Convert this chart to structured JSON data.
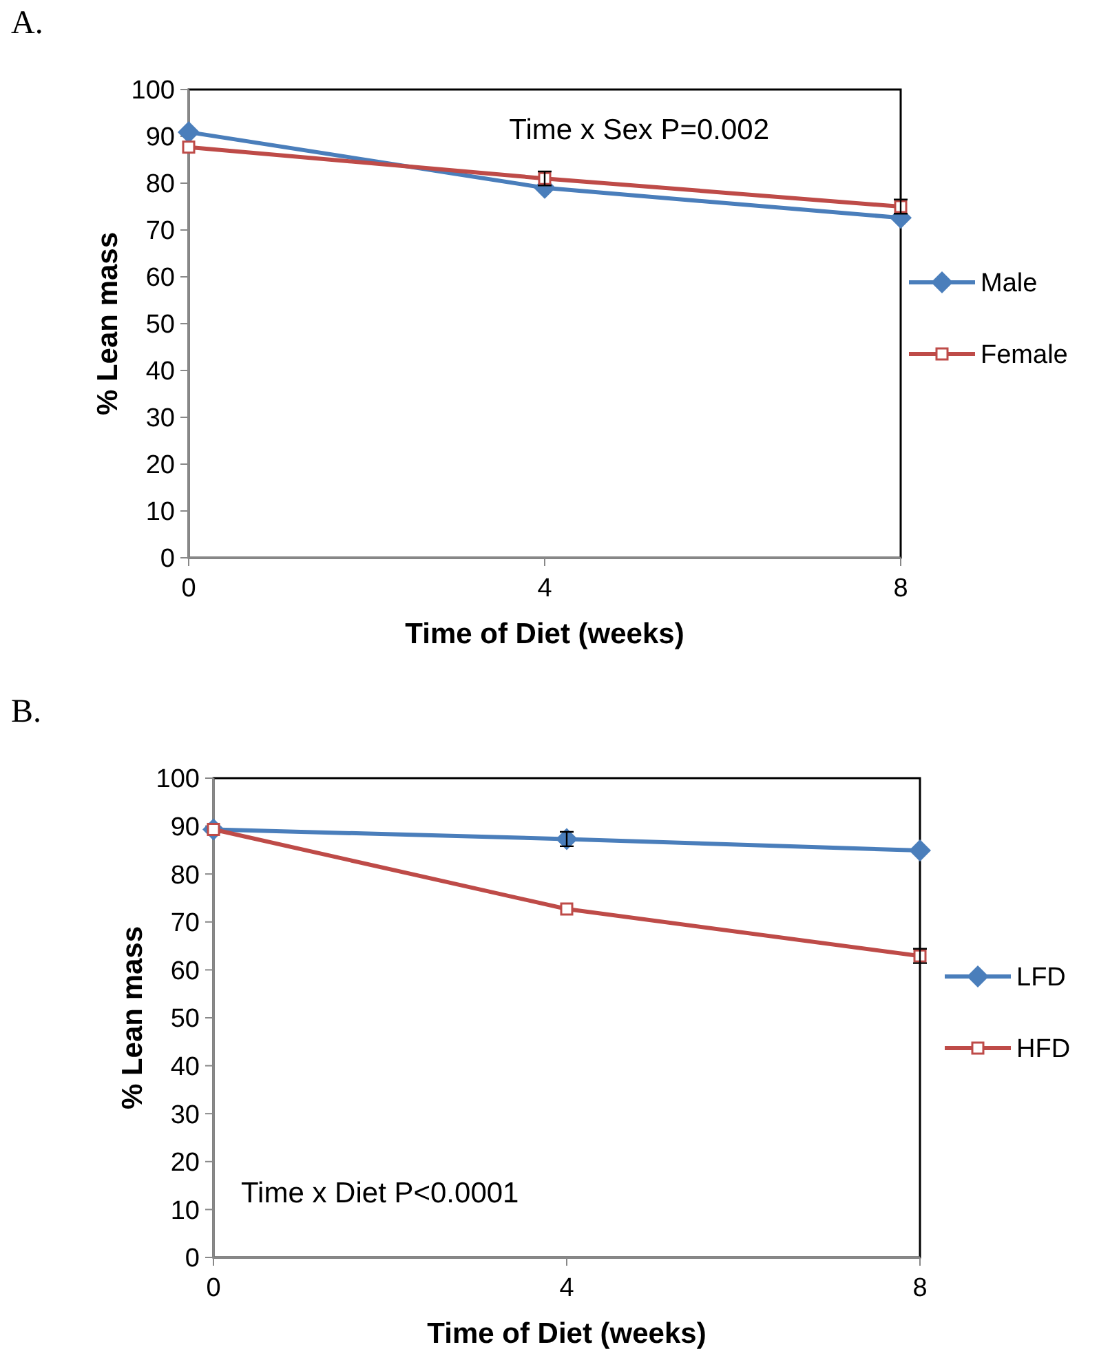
{
  "chart_data": [
    {
      "type": "line",
      "title": "A.",
      "xlabel": "Time of Diet (weeks)",
      "ylabel": "% Lean mass",
      "x": [
        0,
        4,
        8
      ],
      "xlim": [
        0,
        8
      ],
      "xticks": [
        0,
        4,
        8
      ],
      "ylim": [
        0,
        100
      ],
      "yticks": [
        0,
        10,
        20,
        30,
        40,
        50,
        60,
        70,
        80,
        90,
        100
      ],
      "legend": "right",
      "annotations": [
        "Time x Sex P=0.002"
      ],
      "series": [
        {
          "name": "Male",
          "color": "#4a7ebb",
          "marker": "diamond",
          "values": [
            90.9,
            79,
            72.6
          ]
        },
        {
          "name": "Female",
          "color": "#be4b48",
          "marker": "square",
          "values": [
            87.7,
            81,
            75
          ],
          "errors": [
            null,
            1.5,
            1.5
          ]
        }
      ]
    },
    {
      "type": "line",
      "title": "B.",
      "xlabel": "Time of Diet (weeks)",
      "ylabel": "% Lean mass",
      "x": [
        0,
        4,
        8
      ],
      "xlim": [
        0,
        8
      ],
      "xticks": [
        0,
        4,
        8
      ],
      "ylim": [
        0,
        100
      ],
      "yticks": [
        0,
        10,
        20,
        30,
        40,
        50,
        60,
        70,
        80,
        90,
        100
      ],
      "legend": "right",
      "annotations": [
        "Time x Diet P<0.0001"
      ],
      "series": [
        {
          "name": "LFD",
          "color": "#4a7ebb",
          "marker": "diamond",
          "values": [
            89.3,
            87.3,
            84.9
          ],
          "errors": [
            null,
            1.5,
            null
          ]
        },
        {
          "name": "HFD",
          "color": "#be4b48",
          "marker": "square",
          "values": [
            89.3,
            72.7,
            62.9
          ],
          "errors": [
            null,
            null,
            1.5
          ]
        }
      ]
    }
  ]
}
